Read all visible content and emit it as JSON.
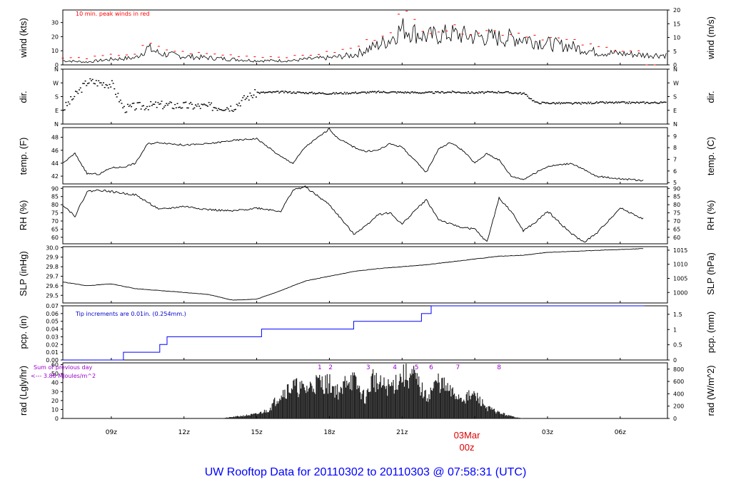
{
  "title": "UW Rooftop Data for 20110302  to  20110303 @ 07:58:31  (UTC)",
  "colors": {
    "wind_peaks": "#ff0000",
    "precip": "#0000ff",
    "notes_radiation": "#9900cc",
    "date_marker": "#dd0000",
    "title": "#0000ff"
  },
  "x_axis": {
    "ticks": [
      "09z",
      "12z",
      "15z",
      "18z",
      "21z",
      "00z",
      "03z",
      "06z"
    ],
    "date_marker_top": "03Mar",
    "date_marker_bottom": "00z"
  },
  "panels": {
    "wind": {
      "label_left": "wind (kts)",
      "label_right": "wind (m/s)",
      "left_ticks": [
        "0",
        "10",
        "20",
        "30"
      ],
      "right_ticks": [
        "0",
        "5",
        "10",
        "15",
        "20"
      ],
      "note": "10 min. peak winds in red"
    },
    "dir": {
      "label_left": "dir.",
      "label_right": "dir.",
      "ticks": [
        "N",
        "E",
        "S",
        "W",
        "N"
      ]
    },
    "temp": {
      "label_left": "temp. (F)",
      "label_right": "temp. (C)",
      "left_ticks": [
        "42",
        "44",
        "46",
        "48"
      ],
      "right_ticks": [
        "5",
        "6",
        "7",
        "8",
        "9"
      ]
    },
    "rh": {
      "label_left": "RH (%)",
      "label_right": "RH (%)",
      "ticks": [
        "60",
        "65",
        "70",
        "75",
        "80",
        "85",
        "90"
      ]
    },
    "slp": {
      "label_left": "SLP (inHg)",
      "label_right": "SLP (hPa)",
      "left_ticks": [
        "29.5",
        "29.6",
        "29.7",
        "29.8",
        "29.9",
        "30.0"
      ],
      "right_ticks": [
        "1000",
        "1005",
        "1010",
        "1015"
      ]
    },
    "pcp": {
      "label_left": "pcp. (in)",
      "label_right": "pcp. (mm)",
      "left_ticks": [
        "0.00",
        "0.01",
        "0.02",
        "0.03",
        "0.04",
        "0.05",
        "0.06",
        "0.07"
      ],
      "right_ticks": [
        "0",
        "0.5",
        "1",
        "1.5"
      ],
      "note": "Tip increments are 0.01in. (0.254mm.)"
    },
    "rad": {
      "label_left": "rad (Lgly/hr)",
      "label_right": "rad (W/m^2)",
      "left_ticks": [
        "0",
        "10",
        "20",
        "30",
        "40",
        "50",
        "60"
      ],
      "right_ticks": [
        "0",
        "200",
        "400",
        "600",
        "800"
      ],
      "note_line1": "Sum of previous day",
      "note_line2": "<--- 3.88 MJoules/m^2",
      "markers": [
        "1",
        "2",
        "3",
        "4",
        "5",
        "6",
        "7",
        "8"
      ]
    }
  },
  "chart_data": [
    {
      "panel": "wind",
      "type": "line",
      "x_unit": "hours since 2011-03-02 07:00 UTC",
      "x": [
        0,
        1,
        2,
        3,
        3.5,
        4,
        5,
        6,
        7,
        8,
        9,
        9.5,
        10,
        11,
        12,
        13,
        13.5,
        14,
        15,
        16,
        17,
        18,
        19,
        20,
        21,
        22,
        23,
        24
      ],
      "series": [
        {
          "values": [
            3,
            2,
            4,
            5,
            12,
            8,
            6,
            5,
            4,
            3,
            3,
            3,
            4,
            5,
            7,
            14,
            18,
            26,
            20,
            22,
            20,
            19,
            19,
            15,
            13,
            9,
            8,
            7
          ]
        },
        {
          "values": [
            5,
            5,
            7,
            8,
            16,
            12,
            9,
            8,
            7,
            6,
            6,
            6,
            7,
            9,
            12,
            21,
            26,
            38,
            26,
            26,
            25,
            24,
            23,
            20,
            17,
            13,
            11,
            10
          ]
        }
      ],
      "ylim": [
        0,
        38.9
      ]
    },
    {
      "panel": "dir",
      "type": "scatter",
      "categories_deg": [
        0,
        90,
        180,
        270,
        360
      ],
      "x": [
        0,
        1,
        2,
        2.5,
        3,
        4,
        5,
        6,
        7,
        7.5,
        8,
        9,
        10,
        11,
        12,
        13,
        14,
        15,
        16,
        17,
        18,
        19,
        19.5,
        20,
        21,
        22,
        23,
        24
      ],
      "values": [
        100,
        280,
        260,
        100,
        115,
        125,
        120,
        115,
        110,
        170,
        205,
        210,
        205,
        200,
        205,
        210,
        208,
        205,
        210,
        205,
        210,
        200,
        140,
        138,
        135,
        140,
        140,
        140
      ],
      "ylim": [
        0,
        360
      ]
    },
    {
      "panel": "temp",
      "type": "line",
      "x": [
        0,
        0.5,
        1,
        1.5,
        2,
        2.5,
        3,
        3.5,
        4,
        5,
        6,
        7,
        8,
        9,
        9.5,
        10,
        11,
        11.3,
        12,
        12.5,
        13,
        13.5,
        14,
        14.5,
        15,
        15.5,
        16,
        16.5,
        17,
        17.5,
        18,
        18.5,
        19,
        19.5,
        20,
        21,
        22,
        23,
        24
      ],
      "values": [
        44,
        45.5,
        42.4,
        42.3,
        43.3,
        43.4,
        44,
        47,
        47.2,
        46.8,
        47,
        47.5,
        47.8,
        45,
        44,
        46.5,
        49.3,
        48,
        46.5,
        45.8,
        46,
        47,
        46.5,
        44.5,
        42.6,
        46.2,
        47.2,
        46,
        44,
        45.5,
        44.5,
        42,
        41.5,
        42.5,
        43.5,
        44,
        42,
        41.6,
        41.3
      ],
      "ylim": [
        40.8,
        49.5
      ]
    },
    {
      "panel": "rh",
      "type": "line",
      "x": [
        0,
        0.5,
        1,
        1.5,
        2,
        2.5,
        3,
        4,
        5,
        6,
        7,
        8,
        9,
        9.5,
        10,
        11,
        12,
        12.5,
        13,
        13.5,
        14,
        14.5,
        15,
        15.5,
        16,
        16.5,
        17,
        17.5,
        18,
        18.5,
        19,
        19.5,
        20,
        20.5,
        21,
        21.5,
        22,
        23,
        24
      ],
      "values": [
        80,
        73,
        88,
        89,
        88,
        87,
        86,
        77,
        79,
        77,
        76,
        78,
        76,
        89,
        91,
        80,
        62,
        67,
        74,
        75,
        68,
        76,
        83,
        71,
        68,
        66,
        65,
        57,
        84,
        76,
        64,
        69,
        76,
        69,
        62,
        57,
        62,
        78,
        71
      ],
      "ylim": [
        56,
        91
      ]
    },
    {
      "panel": "slp",
      "type": "line",
      "x": [
        0,
        1,
        2,
        3,
        4,
        5,
        6,
        7,
        8,
        9,
        10,
        11,
        12,
        13,
        14,
        15,
        16,
        17,
        18,
        19,
        20,
        21,
        22,
        23,
        24
      ],
      "values": [
        29.64,
        29.6,
        29.62,
        29.57,
        29.55,
        29.53,
        29.51,
        29.45,
        29.46,
        29.55,
        29.65,
        29.7,
        29.75,
        29.78,
        29.8,
        29.82,
        29.85,
        29.88,
        29.91,
        29.92,
        29.95,
        29.96,
        29.97,
        29.98,
        29.99
      ],
      "ylim": [
        29.42,
        30.01
      ]
    },
    {
      "panel": "pcp",
      "type": "line",
      "x": [
        0,
        2.5,
        2.5,
        4,
        4,
        4.3,
        4.3,
        8.2,
        8.2,
        12,
        12,
        14.8,
        14.8,
        15.2,
        15.2,
        24
      ],
      "values": [
        0,
        0,
        0.01,
        0.01,
        0.02,
        0.02,
        0.03,
        0.03,
        0.04,
        0.04,
        0.05,
        0.05,
        0.06,
        0.06,
        0.07,
        0.07
      ],
      "ylim": [
        0,
        0.07
      ]
    },
    {
      "panel": "rad",
      "type": "area",
      "x": [
        6.5,
        7,
        7.5,
        8,
        8.5,
        9,
        9.5,
        10,
        10.5,
        11,
        11.5,
        11.7,
        12,
        12.5,
        12.8,
        13,
        13.5,
        14,
        14.5,
        15,
        15.5,
        16,
        16.5,
        17,
        17.5,
        18,
        18.5,
        19
      ],
      "values": [
        0,
        2,
        4,
        6,
        12,
        35,
        45,
        40,
        50,
        48,
        34,
        58,
        52,
        27,
        58,
        47,
        43,
        59,
        58,
        29,
        52,
        36,
        28,
        32,
        15,
        8,
        3,
        0
      ],
      "ylim": [
        0,
        62
      ]
    }
  ]
}
